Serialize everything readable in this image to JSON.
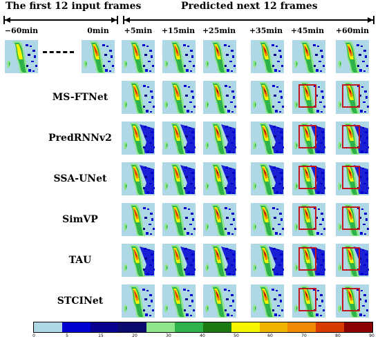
{
  "header": {
    "input_title": "The first 12 input frames",
    "predicted_title": "Predicted next 12 frames"
  },
  "input_time_labels": [
    "−60min",
    "0min"
  ],
  "predicted_time_labels": [
    "+5min",
    "+15min",
    "+25min",
    "+35min",
    "+45min",
    "+60min"
  ],
  "models": [
    "MS-FTNet",
    "PredRNNv2",
    "SSA-UNet",
    "SimVP",
    "TAU",
    "STCINet"
  ],
  "colorbar": {
    "colors": [
      "#aed8e6",
      "#0000d0",
      "#08008f",
      "#0b0b6e",
      "#8ee68a",
      "#2db34a",
      "#1c7a12",
      "#f5f500",
      "#f0b400",
      "#f08a00",
      "#d93a00",
      "#8b0000"
    ],
    "ticks": [
      "0",
      "5",
      "15",
      "20",
      "30",
      "40",
      "50",
      "60",
      "70",
      "80",
      "90"
    ]
  },
  "highlight_box_color": "#c0161c"
}
